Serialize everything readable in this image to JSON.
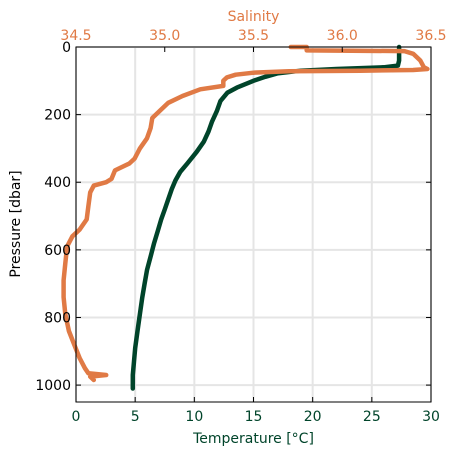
{
  "chart_data": {
    "type": "line",
    "title": "",
    "grid": true,
    "ylabel": "Pressure [dbar]",
    "ylim": [
      1050,
      0
    ],
    "yticks": [
      0,
      200,
      400,
      600,
      800,
      1000
    ],
    "bottom_axis": {
      "label": "Temperature [$^\\circ$C]",
      "label_display": "Temperature [°C]",
      "lim": [
        0,
        30
      ],
      "ticks": [
        0,
        5,
        10,
        15,
        20,
        25,
        30
      ],
      "color": "#00442a"
    },
    "top_axis": {
      "label": "Salinity",
      "lim": [
        34.5,
        36.5
      ],
      "ticks": [
        "34.5",
        "35.0",
        "35.5",
        "36.0",
        "36.5"
      ],
      "color": "#e07a45"
    },
    "series": [
      {
        "axis": "temperature",
        "color": "#00442a",
        "points": [
          [
            27.3,
            0
          ],
          [
            27.3,
            20
          ],
          [
            27.3,
            40
          ],
          [
            27.2,
            55
          ],
          [
            26.0,
            60
          ],
          [
            22.0,
            65
          ],
          [
            19.0,
            70
          ],
          [
            17.0,
            78
          ],
          [
            16.0,
            88
          ],
          [
            15.0,
            100
          ],
          [
            14.3,
            110
          ],
          [
            13.6,
            120
          ],
          [
            12.8,
            135
          ],
          [
            12.2,
            160
          ],
          [
            11.9,
            190
          ],
          [
            11.5,
            220
          ],
          [
            11.2,
            250
          ],
          [
            10.8,
            280
          ],
          [
            10.2,
            310
          ],
          [
            9.4,
            345
          ],
          [
            8.8,
            370
          ],
          [
            8.4,
            395
          ],
          [
            8.1,
            420
          ],
          [
            7.8,
            450
          ],
          [
            7.5,
            480
          ],
          [
            7.2,
            510
          ],
          [
            6.9,
            545
          ],
          [
            6.6,
            580
          ],
          [
            6.3,
            620
          ],
          [
            6.0,
            660
          ],
          [
            5.8,
            700
          ],
          [
            5.6,
            740
          ],
          [
            5.4,
            790
          ],
          [
            5.2,
            840
          ],
          [
            5.0,
            890
          ],
          [
            4.9,
            930
          ],
          [
            4.8,
            970
          ],
          [
            4.8,
            1000
          ],
          [
            4.8,
            1010
          ]
        ]
      },
      {
        "axis": "salinity",
        "color": "#e07a45",
        "points": [
          [
            35.71,
            0
          ],
          [
            35.8,
            0
          ],
          [
            35.8,
            10
          ],
          [
            36.35,
            12
          ],
          [
            36.4,
            20
          ],
          [
            36.44,
            40
          ],
          [
            36.46,
            60
          ],
          [
            36.48,
            65
          ],
          [
            36.4,
            68
          ],
          [
            36.1,
            70
          ],
          [
            35.7,
            72
          ],
          [
            35.5,
            76
          ],
          [
            35.4,
            82
          ],
          [
            35.35,
            90
          ],
          [
            35.33,
            100
          ],
          [
            35.33,
            115
          ],
          [
            35.2,
            125
          ],
          [
            35.1,
            145
          ],
          [
            35.02,
            165
          ],
          [
            34.98,
            185
          ],
          [
            34.93,
            210
          ],
          [
            34.92,
            240
          ],
          [
            34.9,
            270
          ],
          [
            34.86,
            300
          ],
          [
            34.83,
            330
          ],
          [
            34.8,
            345
          ],
          [
            34.72,
            365
          ],
          [
            34.7,
            390
          ],
          [
            34.67,
            400
          ],
          [
            34.6,
            410
          ],
          [
            34.58,
            430
          ],
          [
            34.57,
            470
          ],
          [
            34.56,
            510
          ],
          [
            34.52,
            540
          ],
          [
            34.48,
            560
          ],
          [
            34.45,
            590
          ],
          [
            34.44,
            640
          ],
          [
            34.43,
            690
          ],
          [
            34.43,
            740
          ],
          [
            34.44,
            790
          ],
          [
            34.46,
            840
          ],
          [
            34.49,
            880
          ],
          [
            34.52,
            920
          ],
          [
            34.55,
            950
          ],
          [
            34.57,
            965
          ],
          [
            34.67,
            970
          ],
          [
            34.58,
            975
          ],
          [
            34.6,
            985
          ]
        ]
      }
    ]
  }
}
